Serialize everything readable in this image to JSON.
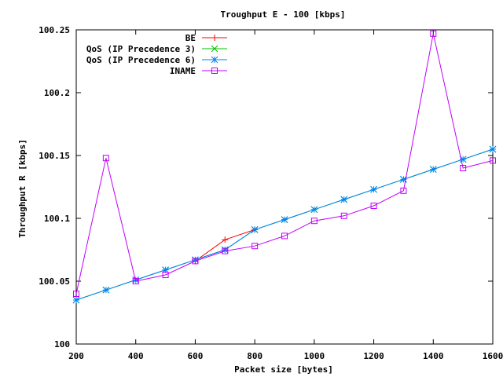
{
  "chart_data": {
    "type": "line",
    "title": "Troughput E - 100 [kbps]",
    "xlabel": "Packet size [bytes]",
    "ylabel": "Throughput R [kbps]",
    "xlim": [
      200,
      1600
    ],
    "ylim": [
      100,
      100.25
    ],
    "xticks": [
      200,
      400,
      600,
      800,
      1000,
      1200,
      1400,
      1600
    ],
    "xtick_labels": [
      "200",
      "400",
      "600",
      "800",
      "1000",
      "1200",
      "1400",
      "1600"
    ],
    "yticks": [
      100,
      100.05,
      100.1,
      100.15,
      100.2,
      100.25
    ],
    "ytick_labels": [
      "100",
      "100.05",
      "100.1",
      "100.15",
      "100.2",
      "100.25"
    ],
    "grid": false,
    "legend_position": "top-left",
    "series": [
      {
        "name": "BE",
        "color": "#ff0000",
        "marker": "plus",
        "x": [
          600,
          700,
          800
        ],
        "y": [
          100.066,
          100.083,
          100.091
        ]
      },
      {
        "name": "QoS (IP Precedence 3)",
        "color": "#00c000",
        "marker": "cross",
        "x": [
          200,
          300,
          400,
          500,
          600,
          700,
          800,
          900,
          1000,
          1100,
          1200,
          1300,
          1400,
          1500,
          1600
        ],
        "y": [
          100.035,
          100.043,
          100.051,
          100.059,
          100.067,
          100.075,
          100.091,
          100.099,
          100.107,
          100.115,
          100.123,
          100.131,
          100.139,
          100.147,
          100.155
        ]
      },
      {
        "name": "QoS (IP Precedence 6)",
        "color": "#0080ff",
        "marker": "star",
        "x": [
          200,
          300,
          400,
          500,
          600,
          700,
          800,
          900,
          1000,
          1100,
          1200,
          1300,
          1400,
          1500,
          1600
        ],
        "y": [
          100.035,
          100.043,
          100.051,
          100.059,
          100.067,
          100.075,
          100.091,
          100.099,
          100.107,
          100.115,
          100.123,
          100.131,
          100.139,
          100.147,
          100.155
        ]
      },
      {
        "name": "INAME",
        "color": "#c000ff",
        "marker": "square",
        "x": [
          200,
          300,
          400,
          500,
          600,
          700,
          800,
          900,
          1000,
          1100,
          1200,
          1300,
          1400,
          1500,
          1600
        ],
        "y": [
          100.04,
          100.148,
          100.05,
          100.055,
          100.066,
          100.074,
          100.078,
          100.086,
          100.098,
          100.102,
          100.11,
          100.122,
          100.247,
          100.14,
          100.146
        ]
      }
    ]
  }
}
